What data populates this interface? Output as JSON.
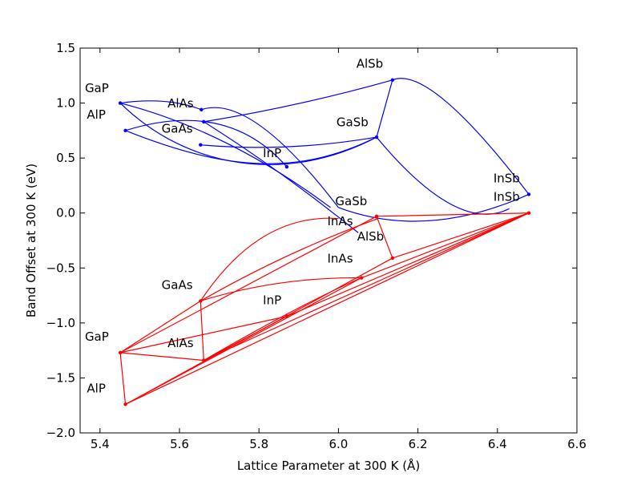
{
  "chart_data": {
    "type": "line",
    "xlabel": "Lattice Parameter at 300 K (Å)",
    "ylabel": "Band Offset at 300 K (eV)",
    "xlim": [
      5.35,
      6.6
    ],
    "ylim": [
      -2.0,
      1.5
    ],
    "xticks": [
      "5.4",
      "5.6",
      "5.8",
      "6.0",
      "6.2",
      "6.4",
      "6.6"
    ],
    "yticks": [
      "1.5",
      "1.0",
      "0.5",
      "0.0",
      "−0.5",
      "−1.0",
      "−1.5",
      "−2.0"
    ],
    "grid": false,
    "colors": {
      "conduction": "#0000ff",
      "valence": "#ff0000"
    },
    "series": [
      {
        "band": "conduction",
        "points": [
          {
            "x": 5.451,
            "y": 1.0
          },
          {
            "x": 5.464,
            "y": 0.75
          },
          {
            "x": 5.653,
            "y": 0.62
          },
          {
            "x": 5.655,
            "y": 0.94
          },
          {
            "x": 5.661,
            "y": 0.83
          },
          {
            "x": 5.87,
            "y": 0.42
          },
          {
            "x": 6.096,
            "y": 0.69
          },
          {
            "x": 6.136,
            "y": 1.21
          },
          {
            "x": 6.479,
            "y": 0.17
          }
        ],
        "curves": [
          {
            "x": [
              5.451,
              5.57,
              5.655
            ],
            "y": [
              1.0,
              1.06,
              0.94
            ]
          },
          {
            "x": [
              5.464,
              5.72,
              5.87
            ],
            "y": [
              0.75,
              1.04,
              0.42
            ]
          },
          {
            "x": [
              5.661,
              5.9,
              6.136
            ],
            "y": [
              0.83,
              0.97,
              1.21
            ]
          },
          {
            "x": [
              6.136,
              6.23,
              6.479
            ],
            "y": [
              1.21,
              1.35,
              0.17
            ]
          },
          {
            "x": [
              6.136,
              6.096
            ],
            "y": [
              1.21,
              0.69
            ]
          },
          {
            "x": [
              5.653,
              5.87,
              6.096
            ],
            "y": [
              0.62,
              0.55,
              0.69
            ]
          },
          {
            "x": [
              5.451,
              5.62,
              5.87,
              6.096
            ],
            "y": [
              1.0,
              0.4,
              0.26,
              0.69
            ]
          },
          {
            "x": [
              5.464,
              5.72,
              5.9,
              6.096
            ],
            "y": [
              0.75,
              0.38,
              0.34,
              0.69
            ]
          },
          {
            "x": [
              5.451,
              5.72,
              5.98
            ],
            "y": [
              1.0,
              0.75,
              0.05
            ]
          },
          {
            "x": [
              5.655,
              5.78,
              6.0
            ],
            "y": [
              0.94,
              1.09,
              0.05
            ]
          },
          {
            "x": [
              5.661,
              5.85,
              6.05
            ],
            "y": [
              0.83,
              0.4,
              -0.18
            ]
          },
          {
            "x": [
              6.096,
              6.3,
              6.43
            ],
            "y": [
              0.69,
              -0.2,
              0.04
            ]
          },
          {
            "x": [
              6.0,
              6.22,
              6.479
            ],
            "y": [
              0.05,
              -0.25,
              0.17
            ]
          }
        ]
      },
      {
        "band": "valence",
        "points": [
          {
            "x": 5.451,
            "y": -1.27
          },
          {
            "x": 5.464,
            "y": -1.74
          },
          {
            "x": 5.653,
            "y": -0.8
          },
          {
            "x": 5.661,
            "y": -1.34
          },
          {
            "x": 5.87,
            "y": -0.94
          },
          {
            "x": 6.058,
            "y": -0.59
          },
          {
            "x": 6.096,
            "y": -0.03
          },
          {
            "x": 6.136,
            "y": -0.41
          },
          {
            "x": 6.479,
            "y": 0.0
          }
        ],
        "curves": [
          {
            "x": [
              5.451,
              5.464
            ],
            "y": [
              -1.27,
              -1.74
            ]
          },
          {
            "x": [
              5.451,
              5.653
            ],
            "y": [
              -1.27,
              -0.8
            ]
          },
          {
            "x": [
              5.653,
              5.661
            ],
            "y": [
              -0.8,
              -1.34
            ]
          },
          {
            "x": [
              5.451,
              6.096
            ],
            "y": [
              -1.27,
              -0.03
            ]
          },
          {
            "x": [
              5.451,
              5.661
            ],
            "y": [
              -1.27,
              -1.34
            ]
          },
          {
            "x": [
              5.661,
              5.87
            ],
            "y": [
              -1.34,
              -0.94
            ]
          },
          {
            "x": [
              5.451,
              5.87
            ],
            "y": [
              -1.27,
              -0.94
            ]
          },
          {
            "x": [
              5.464,
              6.479
            ],
            "y": [
              -1.74,
              0.0
            ]
          },
          {
            "x": [
              5.464,
              6.058
            ],
            "y": [
              -1.74,
              -0.59
            ]
          },
          {
            "x": [
              5.464,
              6.136
            ],
            "y": [
              -1.74,
              -0.41
            ]
          },
          {
            "x": [
              5.661,
              6.479
            ],
            "y": [
              -1.34,
              0.0
            ]
          },
          {
            "x": [
              5.87,
              6.479
            ],
            "y": [
              -0.94,
              0.0
            ]
          },
          {
            "x": [
              6.058,
              6.479
            ],
            "y": [
              -0.59,
              0.0
            ]
          },
          {
            "x": [
              6.136,
              6.479
            ],
            "y": [
              -0.41,
              0.0
            ]
          },
          {
            "x": [
              6.096,
              6.479
            ],
            "y": [
              -0.03,
              0.0
            ]
          },
          {
            "x": [
              6.096,
              6.136
            ],
            "y": [
              -0.03,
              -0.41
            ]
          },
          {
            "x": [
              5.653,
              5.85,
              6.058
            ],
            "y": [
              -0.8,
              -0.58,
              -0.59
            ]
          },
          {
            "x": [
              5.653,
              5.87,
              6.1
            ],
            "y": [
              -0.8,
              -0.35,
              -0.05
            ]
          },
          {
            "x": [
              5.653,
              5.8,
              6.0
            ],
            "y": [
              -0.8,
              0.0,
              -0.05
            ]
          },
          {
            "x": [
              5.661,
              5.92,
              6.058
            ],
            "y": [
              -1.34,
              -0.8,
              -0.59
            ]
          }
        ]
      }
    ],
    "annotations": [
      {
        "text": "GaP",
        "x": 5.362,
        "y": 1.1
      },
      {
        "text": "AlP",
        "x": 5.367,
        "y": 0.86
      },
      {
        "text": "AlAs",
        "x": 5.57,
        "y": 0.96
      },
      {
        "text": "GaAs",
        "x": 5.555,
        "y": 0.73
      },
      {
        "text": "InP",
        "x": 5.81,
        "y": 0.51
      },
      {
        "text": "AlSb",
        "x": 6.045,
        "y": 1.32
      },
      {
        "text": "GaSb",
        "x": 5.995,
        "y": 0.79
      },
      {
        "text": "InSb",
        "x": 6.39,
        "y": 0.28
      },
      {
        "text": "GaSb",
        "x": 5.992,
        "y": 0.07
      },
      {
        "text": "InAs",
        "x": 5.972,
        "y": -0.11
      },
      {
        "text": "InSb",
        "x": 6.39,
        "y": 0.11
      },
      {
        "text": "AlSb",
        "x": 6.047,
        "y": -0.25
      },
      {
        "text": "InAs",
        "x": 5.972,
        "y": -0.45
      },
      {
        "text": "GaAs",
        "x": 5.555,
        "y": -0.69
      },
      {
        "text": "InP",
        "x": 5.81,
        "y": -0.83
      },
      {
        "text": "GaP",
        "x": 5.362,
        "y": -1.16
      },
      {
        "text": "AlAs",
        "x": 5.57,
        "y": -1.22
      },
      {
        "text": "AlP",
        "x": 5.367,
        "y": -1.63
      }
    ]
  }
}
